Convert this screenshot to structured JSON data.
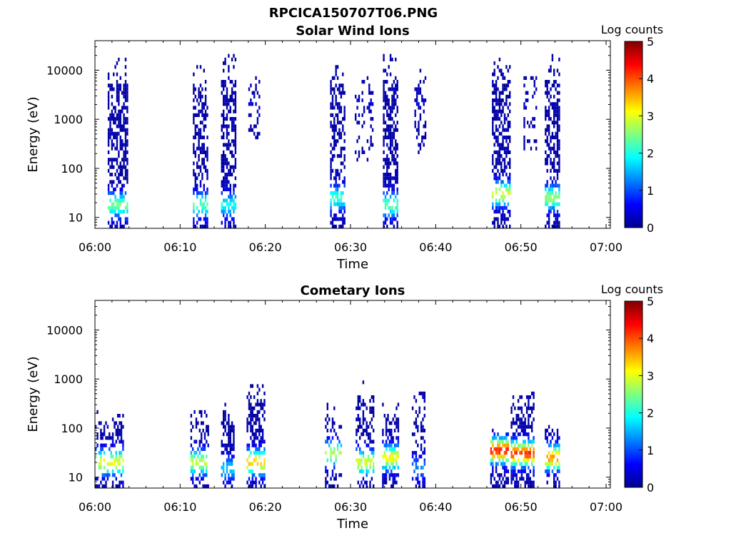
{
  "figure_title": "RPCICA150707T06.PNG",
  "colormap_stops": [
    "#00008f",
    "#0000ff",
    "#0080ff",
    "#00ffff",
    "#80ff80",
    "#ffff00",
    "#ff8000",
    "#ff0000",
    "#800000"
  ],
  "chart_data": [
    {
      "type": "heatmap",
      "title": "Solar Wind Ions",
      "xlabel": "Time",
      "ylabel": "Energy (eV)",
      "x_ticks": [
        "06:00",
        "06:10",
        "06:20",
        "06:30",
        "06:40",
        "06:50",
        "07:00"
      ],
      "x_range_minutes": [
        0,
        60.5
      ],
      "y_scale": "log",
      "y_ticks": [
        "10",
        "100",
        "1000",
        "10000"
      ],
      "y_range": [
        6,
        40000
      ],
      "colorbar": {
        "label": "Log counts",
        "ticks": [
          "0",
          "1",
          "2",
          "3",
          "4",
          "5"
        ],
        "range": [
          0,
          5
        ]
      },
      "activity_bursts": [
        {
          "t_start": 1.5,
          "t_end": 3.8,
          "e_min": 6,
          "e_max": 18000,
          "density": 0.55,
          "peak_logc": 2.3,
          "peak_e": 18
        },
        {
          "t_start": 11.5,
          "t_end": 13.2,
          "e_min": 6,
          "e_max": 13000,
          "density": 0.5,
          "peak_logc": 2.2,
          "peak_e": 18
        },
        {
          "t_start": 14.8,
          "t_end": 16.4,
          "e_min": 6,
          "e_max": 20000,
          "density": 0.55,
          "peak_logc": 1.8,
          "peak_e": 18
        },
        {
          "t_start": 18.0,
          "t_end": 19.2,
          "e_min": 400,
          "e_max": 12000,
          "density": 0.3,
          "peak_logc": 0.2,
          "peak_e": 2000
        },
        {
          "t_start": 27.6,
          "t_end": 29.3,
          "e_min": 6,
          "e_max": 16000,
          "density": 0.55,
          "peak_logc": 2.0,
          "peak_e": 25
        },
        {
          "t_start": 30.5,
          "t_end": 32.6,
          "e_min": 150,
          "e_max": 7000,
          "density": 0.2,
          "peak_logc": 0.2,
          "peak_e": 2000
        },
        {
          "t_start": 33.8,
          "t_end": 35.6,
          "e_min": 6,
          "e_max": 22000,
          "density": 0.6,
          "peak_logc": 2.2,
          "peak_e": 18
        },
        {
          "t_start": 37.5,
          "t_end": 38.8,
          "e_min": 200,
          "e_max": 11000,
          "density": 0.25,
          "peak_logc": 0.2,
          "peak_e": 2000
        },
        {
          "t_start": 46.6,
          "t_end": 48.8,
          "e_min": 6,
          "e_max": 17000,
          "density": 0.55,
          "peak_logc": 2.8,
          "peak_e": 30
        },
        {
          "t_start": 50.3,
          "t_end": 51.8,
          "e_min": 200,
          "e_max": 9000,
          "density": 0.25,
          "peak_logc": 0.2,
          "peak_e": 2000
        },
        {
          "t_start": 52.8,
          "t_end": 54.6,
          "e_min": 6,
          "e_max": 22000,
          "density": 0.55,
          "peak_logc": 2.5,
          "peak_e": 25
        }
      ]
    },
    {
      "type": "heatmap",
      "title": "Cometary Ions",
      "xlabel": "Time",
      "ylabel": "Energy (eV)",
      "x_ticks": [
        "06:00",
        "06:10",
        "06:20",
        "06:30",
        "06:40",
        "06:50",
        "07:00"
      ],
      "x_range_minutes": [
        0,
        60.5
      ],
      "y_scale": "log",
      "y_ticks": [
        "10",
        "100",
        "1000",
        "10000"
      ],
      "y_range": [
        6,
        40000
      ],
      "colorbar": {
        "label": "Log counts",
        "ticks": [
          "0",
          "1",
          "2",
          "3",
          "4",
          "5"
        ],
        "range": [
          0,
          5
        ]
      },
      "activity_bursts": [
        {
          "t_start": 0.0,
          "t_end": 3.3,
          "e_min": 6,
          "e_max": 220,
          "density": 0.45,
          "peak_logc": 2.9,
          "peak_e": 20
        },
        {
          "t_start": 11.2,
          "t_end": 13.2,
          "e_min": 6,
          "e_max": 250,
          "density": 0.45,
          "peak_logc": 2.7,
          "peak_e": 20
        },
        {
          "t_start": 14.8,
          "t_end": 16.3,
          "e_min": 6,
          "e_max": 350,
          "density": 0.45,
          "peak_logc": 1.5,
          "peak_e": 15
        },
        {
          "t_start": 17.8,
          "t_end": 19.8,
          "e_min": 6,
          "e_max": 800,
          "density": 0.5,
          "peak_logc": 3.3,
          "peak_e": 20
        },
        {
          "t_start": 27.0,
          "t_end": 28.8,
          "e_min": 6,
          "e_max": 350,
          "density": 0.35,
          "peak_logc": 2.6,
          "peak_e": 30
        },
        {
          "t_start": 30.6,
          "t_end": 32.8,
          "e_min": 6,
          "e_max": 1000,
          "density": 0.45,
          "peak_logc": 2.8,
          "peak_e": 20
        },
        {
          "t_start": 33.7,
          "t_end": 35.6,
          "e_min": 6,
          "e_max": 350,
          "density": 0.55,
          "peak_logc": 3.0,
          "peak_e": 25
        },
        {
          "t_start": 37.2,
          "t_end": 38.8,
          "e_min": 6,
          "e_max": 600,
          "density": 0.35,
          "peak_logc": 1.2,
          "peak_e": 15
        },
        {
          "t_start": 46.4,
          "t_end": 48.6,
          "e_min": 6,
          "e_max": 100,
          "density": 0.6,
          "peak_logc": 4.1,
          "peak_e": 35
        },
        {
          "t_start": 48.8,
          "t_end": 51.6,
          "e_min": 6,
          "e_max": 550,
          "density": 0.6,
          "peak_logc": 4.0,
          "peak_e": 30
        },
        {
          "t_start": 52.8,
          "t_end": 54.6,
          "e_min": 6,
          "e_max": 150,
          "density": 0.5,
          "peak_logc": 3.6,
          "peak_e": 25
        }
      ]
    }
  ]
}
